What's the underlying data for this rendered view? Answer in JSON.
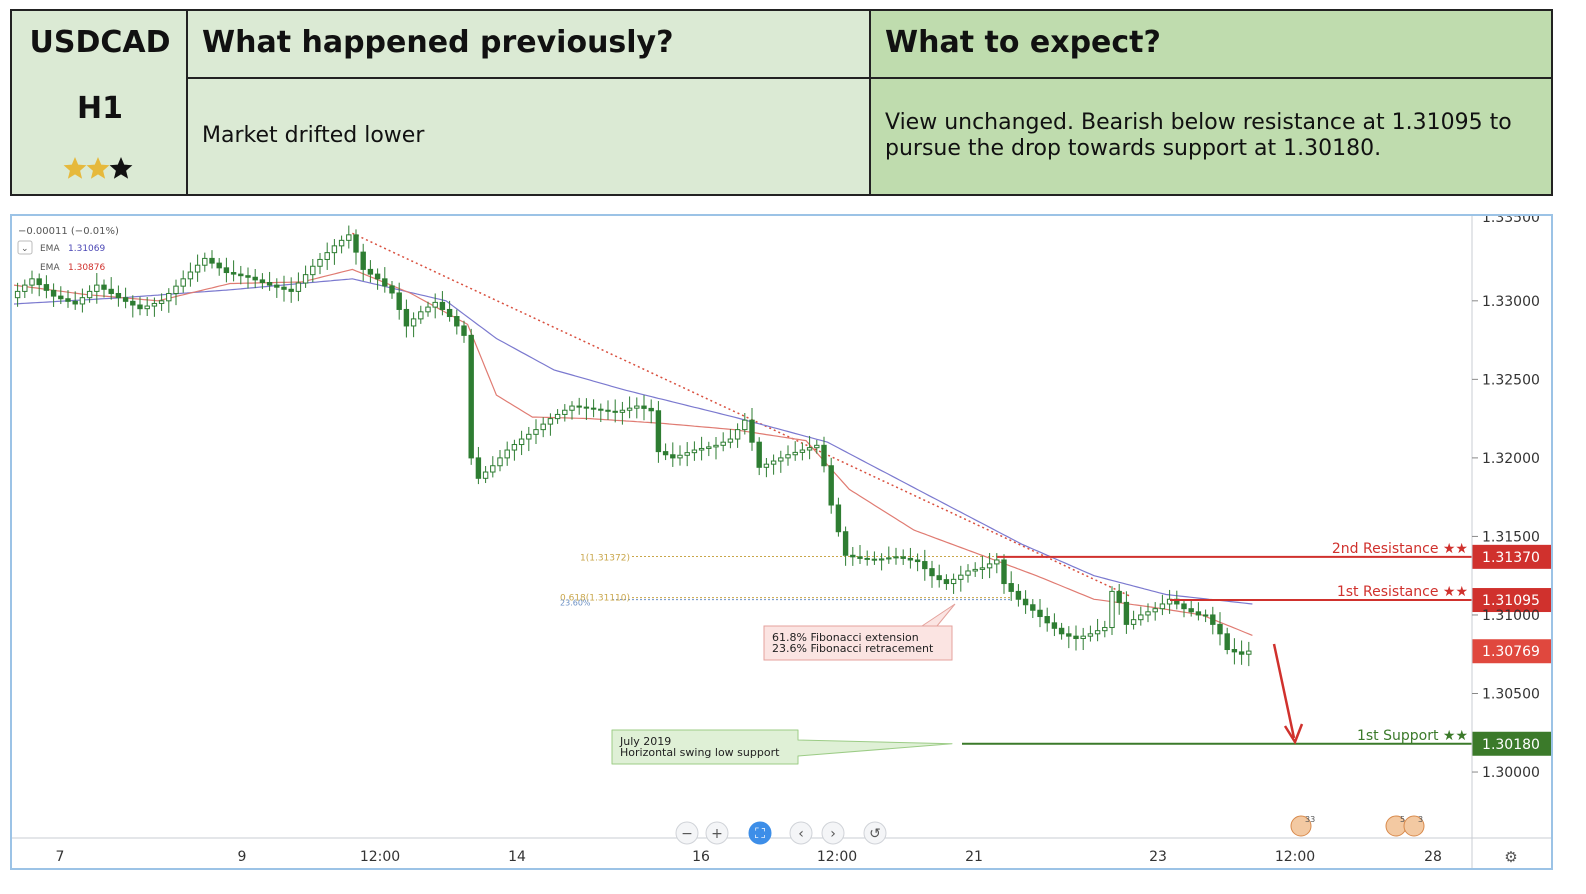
{
  "header": {
    "symbol": "USDCAD",
    "timeframe": "H1",
    "stars_filled": 2,
    "stars_total": 3,
    "prev_heading": "What happened previously?",
    "prev_text": "Market drifted lower",
    "expect_heading": "What to expect?",
    "expect_text_line1": "View unchanged. Bearish below resistance at 1.31095 to",
    "expect_text_line2": "pursue the drop towards support at 1.30180."
  },
  "colors": {
    "resistance": "#d0312d",
    "support": "#3b7a2a",
    "ema_fast": "#e07b72",
    "ema_slow": "#7b79cf",
    "candle": "#2e7d32",
    "current_price": "#e0483e",
    "fib": "#c9a64a",
    "fib_retr": "#6a8fc4",
    "trendline": "#d9503f",
    "star_filled": "#e6b93c",
    "star_empty": "#111111"
  },
  "legend": {
    "change": "−0.00011 (−0.01%)",
    "ema1_label": "EMA",
    "ema1_value": "1.31069",
    "ema2_label": "EMA",
    "ema2_value": "1.30876"
  },
  "chart_data": {
    "type": "candlestick",
    "title": "",
    "xlabel": "",
    "ylabel": "",
    "ylim": [
      1.2958,
      1.3354
    ],
    "y_ticks": [
      "1.33000",
      "1.32500",
      "1.32000",
      "1.31500",
      "1.31000",
      "1.30500",
      "1.30000"
    ],
    "y_tick_values": [
      1.33,
      1.325,
      1.32,
      1.315,
      1.31,
      1.305,
      1.3
    ],
    "y_top_partial": "1.33500",
    "x_ticks": [
      "7",
      "9",
      "12:00",
      "14",
      "16",
      "12:00",
      "21",
      "23",
      "12:00",
      "28"
    ],
    "price_path": [
      [
        0,
        1.3302
      ],
      [
        3,
        1.3314
      ],
      [
        6,
        1.3303
      ],
      [
        9,
        1.3298
      ],
      [
        12,
        1.331
      ],
      [
        15,
        1.3302
      ],
      [
        18,
        1.3295
      ],
      [
        21,
        1.33
      ],
      [
        24,
        1.3314
      ],
      [
        27,
        1.3327
      ],
      [
        30,
        1.3318
      ],
      [
        33,
        1.3315
      ],
      [
        36,
        1.331
      ],
      [
        39,
        1.3306
      ],
      [
        42,
        1.3322
      ],
      [
        45,
        1.3335
      ],
      [
        47,
        1.3342
      ],
      [
        49,
        1.332
      ],
      [
        51,
        1.3314
      ],
      [
        53,
        1.3305
      ],
      [
        55,
        1.3284
      ],
      [
        57,
        1.3293
      ],
      [
        59,
        1.3299
      ],
      [
        61,
        1.329
      ],
      [
        63,
        1.3278
      ],
      [
        64,
        1.32
      ],
      [
        65,
        1.3187
      ],
      [
        67,
        1.3195
      ],
      [
        69,
        1.3205
      ],
      [
        71,
        1.3212
      ],
      [
        73,
        1.3218
      ],
      [
        75,
        1.3225
      ],
      [
        78,
        1.3233
      ],
      [
        81,
        1.3231
      ],
      [
        84,
        1.3229
      ],
      [
        87,
        1.3233
      ],
      [
        89,
        1.323
      ],
      [
        90,
        1.3204
      ],
      [
        92,
        1.32
      ],
      [
        95,
        1.3205
      ],
      [
        98,
        1.3208
      ],
      [
        100,
        1.3212
      ],
      [
        102,
        1.3224
      ],
      [
        103,
        1.321
      ],
      [
        104,
        1.3194
      ],
      [
        106,
        1.3198
      ],
      [
        108,
        1.3202
      ],
      [
        110,
        1.3205
      ],
      [
        112,
        1.3208
      ],
      [
        113,
        1.3195
      ],
      [
        114,
        1.317
      ],
      [
        115,
        1.3153
      ],
      [
        116,
        1.3138
      ],
      [
        118,
        1.3136
      ],
      [
        120,
        1.3135
      ],
      [
        123,
        1.3137
      ],
      [
        126,
        1.3134
      ],
      [
        128,
        1.3125
      ],
      [
        130,
        1.312
      ],
      [
        133,
        1.3128
      ],
      [
        135,
        1.313
      ],
      [
        137,
        1.3135
      ],
      [
        138,
        1.312
      ],
      [
        140,
        1.311
      ],
      [
        142,
        1.3103
      ],
      [
        144,
        1.3095
      ],
      [
        146,
        1.3088
      ],
      [
        148,
        1.3085
      ],
      [
        150,
        1.3088
      ],
      [
        152,
        1.3092
      ],
      [
        153,
        1.3115
      ],
      [
        154,
        1.3108
      ],
      [
        155,
        1.3094
      ],
      [
        157,
        1.31
      ],
      [
        159,
        1.3104
      ],
      [
        161,
        1.311
      ],
      [
        163,
        1.3104
      ],
      [
        165,
        1.31
      ],
      [
        166,
        1.31
      ],
      [
        168,
        1.3088
      ],
      [
        169,
        1.3078
      ],
      [
        171,
        1.3075
      ],
      [
        172,
        1.3077
      ]
    ],
    "ema_fast": [
      [
        0,
        1.331
      ],
      [
        10,
        1.3304
      ],
      [
        20,
        1.33
      ],
      [
        30,
        1.3311
      ],
      [
        40,
        1.3312
      ],
      [
        47,
        1.332
      ],
      [
        55,
        1.3305
      ],
      [
        63,
        1.3285
      ],
      [
        67,
        1.324
      ],
      [
        72,
        1.3226
      ],
      [
        80,
        1.3225
      ],
      [
        90,
        1.3222
      ],
      [
        100,
        1.3218
      ],
      [
        110,
        1.3211
      ],
      [
        116,
        1.318
      ],
      [
        125,
        1.3154
      ],
      [
        135,
        1.3137
      ],
      [
        142,
        1.3125
      ],
      [
        150,
        1.311
      ],
      [
        158,
        1.3105
      ],
      [
        165,
        1.31
      ],
      [
        172,
        1.3087
      ]
    ],
    "ema_slow": [
      [
        0,
        1.3298
      ],
      [
        15,
        1.3302
      ],
      [
        30,
        1.3307
      ],
      [
        47,
        1.3314
      ],
      [
        60,
        1.33
      ],
      [
        67,
        1.3276
      ],
      [
        75,
        1.3256
      ],
      [
        85,
        1.3243
      ],
      [
        100,
        1.3226
      ],
      [
        113,
        1.321
      ],
      [
        125,
        1.3181
      ],
      [
        140,
        1.3145
      ],
      [
        150,
        1.3125
      ],
      [
        160,
        1.3113
      ],
      [
        172,
        1.3107
      ]
    ],
    "levels": [
      {
        "name": "2nd Resistance",
        "value": 1.3137,
        "label": "1.31370",
        "stars": "★★"
      },
      {
        "name": "1st Resistance",
        "value": 1.31095,
        "label": "1.31095",
        "stars": "★★"
      },
      {
        "name": "1st Support",
        "value": 1.3018,
        "label": "1.30180",
        "stars": "★★"
      }
    ],
    "current_price": {
      "value": 1.30769,
      "label": "1.30769"
    },
    "fib_ext_label": "1(1.31372)",
    "fib_618_label": "0.618(1.31110)",
    "fib_236_label": "23.60%",
    "annotation_fib_line1": "61.8% Fibonacci extension",
    "annotation_fib_line2": "23.6% Fibonacci retracement",
    "annotation_swing_line1": "July 2019",
    "annotation_swing_line2": "Horizontal swing low support",
    "trendline": [
      [
        47,
        1.3343
      ],
      [
        155,
        1.3112
      ]
    ],
    "toolbar": [
      "−",
      "+",
      "⛶",
      "‹",
      "›",
      "↺"
    ],
    "event_badge1": "33",
    "event_badge2": "5",
    "event_badge3": "3"
  }
}
